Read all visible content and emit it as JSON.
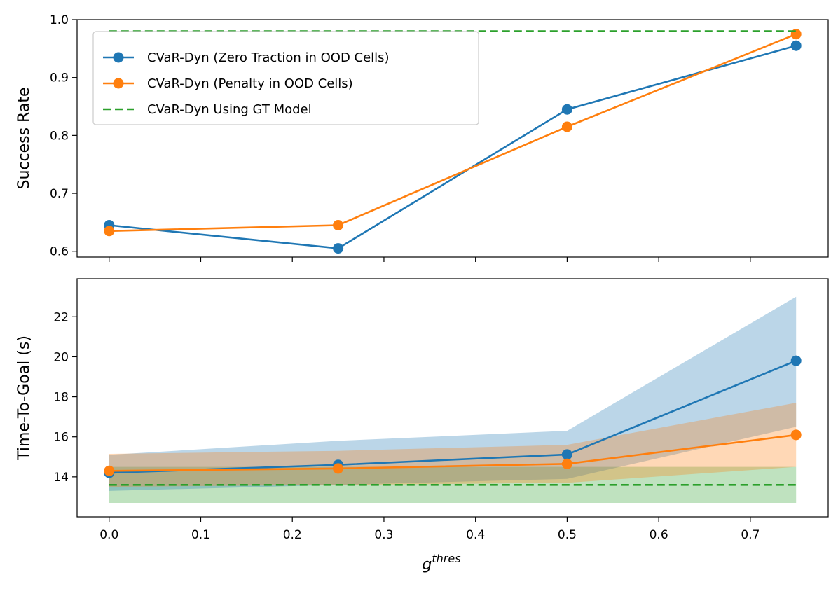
{
  "chart_data": {
    "type": "line",
    "x": [
      0.0,
      0.25,
      0.5,
      0.75
    ],
    "xlabel_base": "g",
    "xlabel_sup": "thres",
    "xticks": [
      "0.0",
      "0.1",
      "0.2",
      "0.3",
      "0.4",
      "0.5",
      "0.6",
      "0.7"
    ],
    "xtick_values": [
      0.0,
      0.1,
      0.2,
      0.3,
      0.4,
      0.5,
      0.6,
      0.7
    ],
    "xlim": [
      -0.035,
      0.785
    ],
    "colors": {
      "zero_traction": "#1f77b4",
      "penalty": "#ff7f0e",
      "gt": "#2ca02c"
    },
    "panels": [
      {
        "id": "success",
        "ylabel": "Success Rate",
        "ylim": [
          0.59,
          1.0
        ],
        "yticks": [
          "0.6",
          "0.7",
          "0.8",
          "0.9",
          "1.0"
        ],
        "ytick_values": [
          0.6,
          0.7,
          0.8,
          0.9,
          1.0
        ],
        "series": [
          {
            "name": "CVaR-Dyn (Zero Traction in OOD Cells)",
            "color_key": "zero_traction",
            "style": "line-marker",
            "values": [
              0.645,
              0.605,
              0.845,
              0.955
            ]
          },
          {
            "name": "CVaR-Dyn (Penalty in OOD Cells)",
            "color_key": "penalty",
            "style": "line-marker",
            "values": [
              0.635,
              0.645,
              0.815,
              0.975
            ]
          },
          {
            "name": "CVaR-Dyn Using GT Model",
            "color_key": "gt",
            "style": "dashed",
            "values": [
              0.98,
              0.98,
              0.98,
              0.98
            ]
          }
        ],
        "legend_location": "upper-left"
      },
      {
        "id": "time",
        "ylabel": "Time-To-Goal (s)",
        "ylim": [
          12.0,
          23.9
        ],
        "yticks": [
          "14",
          "16",
          "18",
          "20",
          "22"
        ],
        "ytick_values": [
          14,
          16,
          18,
          20,
          22
        ],
        "series": [
          {
            "name": "CVaR-Dyn (Zero Traction in OOD Cells)",
            "color_key": "zero_traction",
            "style": "line-marker",
            "values": [
              14.2,
              14.6,
              15.12,
              19.8
            ],
            "band_low": [
              13.3,
              13.6,
              13.9,
              16.5
            ],
            "band_high": [
              15.1,
              15.8,
              16.3,
              23.0
            ]
          },
          {
            "name": "CVaR-Dyn (Penalty in OOD Cells)",
            "color_key": "penalty",
            "style": "line-marker",
            "values": [
              14.3,
              14.42,
              14.65,
              16.1
            ],
            "band_low": [
              13.5,
              13.6,
              13.7,
              14.5
            ],
            "band_high": [
              15.15,
              15.3,
              15.6,
              17.7
            ]
          },
          {
            "name": "CVaR-Dyn Using GT Model",
            "color_key": "gt",
            "style": "dashed",
            "values": [
              13.6,
              13.6,
              13.6,
              13.6
            ],
            "band_low": [
              12.7,
              12.7,
              12.7,
              12.7
            ],
            "band_high": [
              14.5,
              14.5,
              14.5,
              14.5
            ]
          }
        ]
      }
    ]
  }
}
